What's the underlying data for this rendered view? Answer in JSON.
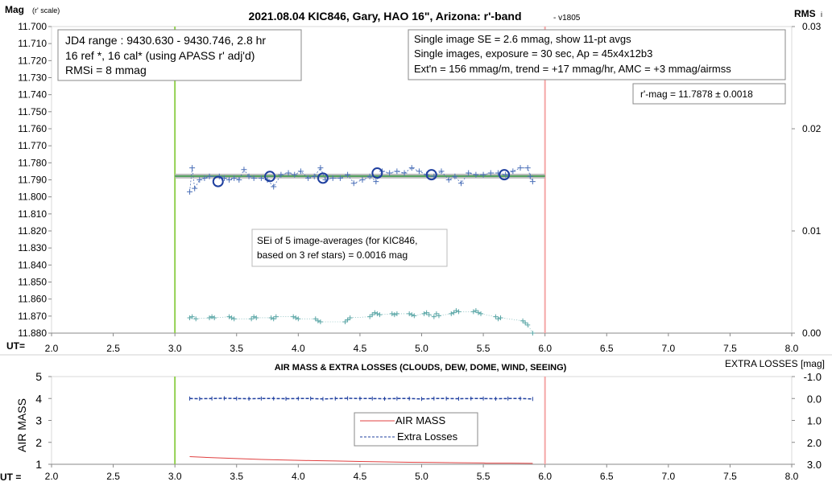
{
  "chart_data": [
    {
      "type": "scatter",
      "title": "2021.08.04 KIC846, Gary, HAO 16\", Arizona: r'-band",
      "title_suffix": " - v1805",
      "ylabel_main": "Mag",
      "ylabel_sub": "(r' scale)",
      "y2label_main": "RMS",
      "y2label_sub": "i",
      "xlabel": "UT=",
      "xlim": [
        2.0,
        8.0
      ],
      "ylim": [
        11.7,
        11.88
      ],
      "y_reversed": true,
      "y2lim": [
        0.0,
        0.03
      ],
      "x_ticks": [
        "2.0",
        "2.5",
        "3.0",
        "3.5",
        "4.0",
        "4.5",
        "5.0",
        "5.5",
        "6.0",
        "6.5",
        "7.0",
        "7.5",
        "8.0"
      ],
      "y_ticks": [
        "11.700",
        "11.710",
        "11.720",
        "11.730",
        "11.740",
        "11.750",
        "11.760",
        "11.770",
        "11.780",
        "11.790",
        "11.800",
        "11.810",
        "11.820",
        "11.830",
        "11.840",
        "11.850",
        "11.860",
        "11.870",
        "11.880"
      ],
      "y2_ticks": [
        "0.03",
        "0.02",
        "0.01",
        "0.00"
      ],
      "grid": false,
      "vlines": [
        {
          "x": 3.0,
          "color": "#92d050"
        },
        {
          "x": 6.0,
          "color": "#f4a6a6"
        }
      ],
      "fit_line": {
        "x": [
          3.0,
          6.0
        ],
        "y": 11.7878,
        "color": "#4ea05a",
        "band_color": "#b0b0b0"
      },
      "series": [
        {
          "kind": "single_images",
          "color": "#4a6fb8",
          "x": [
            3.12,
            3.14,
            3.16,
            3.2,
            3.24,
            3.28,
            3.36,
            3.4,
            3.44,
            3.48,
            3.52,
            3.56,
            3.6,
            3.64,
            3.7,
            3.75,
            3.8,
            3.86,
            3.92,
            3.97,
            4.02,
            4.08,
            4.13,
            4.18,
            4.22,
            4.28,
            4.34,
            4.4,
            4.45,
            4.52,
            4.58,
            4.63,
            4.68,
            4.74,
            4.8,
            4.86,
            4.92,
            4.98,
            5.04,
            5.1,
            5.16,
            5.22,
            5.27,
            5.32,
            5.38,
            5.44,
            5.5,
            5.56,
            5.62,
            5.68,
            5.74,
            5.8,
            5.86,
            5.88,
            5.9
          ],
          "y": [
            11.797,
            11.783,
            11.795,
            11.79,
            11.789,
            11.788,
            11.788,
            11.789,
            11.79,
            11.789,
            11.79,
            11.784,
            11.788,
            11.789,
            11.789,
            11.79,
            11.794,
            11.787,
            11.786,
            11.787,
            11.785,
            11.789,
            11.788,
            11.783,
            11.79,
            11.789,
            11.789,
            11.787,
            11.792,
            11.79,
            11.788,
            11.791,
            11.785,
            11.786,
            11.785,
            11.786,
            11.783,
            11.785,
            11.787,
            11.788,
            11.785,
            11.79,
            11.788,
            11.792,
            11.786,
            11.787,
            11.787,
            11.786,
            11.786,
            11.787,
            11.785,
            11.783,
            11.783,
            11.788,
            11.791
          ]
        },
        {
          "kind": "11pt_averages",
          "color": "#1f3f9f",
          "x": [
            3.35,
            3.77,
            4.2,
            4.64,
            5.08,
            5.67
          ],
          "y": [
            11.791,
            11.788,
            11.789,
            11.786,
            11.787,
            11.787
          ]
        },
        {
          "kind": "rms_i",
          "color": "#5aa6a6",
          "axis": "right",
          "x": [
            3.12,
            3.14,
            3.17,
            3.28,
            3.3,
            3.32,
            3.44,
            3.46,
            3.48,
            3.62,
            3.64,
            3.66,
            3.78,
            3.8,
            3.82,
            3.96,
            3.98,
            4.0,
            4.14,
            4.16,
            4.18,
            4.38,
            4.4,
            4.42,
            4.58,
            4.6,
            4.62,
            4.64,
            4.66,
            4.76,
            4.78,
            4.8,
            4.9,
            4.92,
            4.94,
            5.02,
            5.04,
            5.06,
            5.1,
            5.12,
            5.14,
            5.24,
            5.26,
            5.28,
            5.3,
            5.42,
            5.44,
            5.46,
            5.48,
            5.6,
            5.62,
            5.64,
            5.82,
            5.84,
            5.86,
            5.9
          ],
          "y": [
            0.0015,
            0.0016,
            0.0014,
            0.0015,
            0.0016,
            0.0015,
            0.0016,
            0.0015,
            0.0014,
            0.0014,
            0.0016,
            0.0015,
            0.0015,
            0.0014,
            0.0016,
            0.0016,
            0.0015,
            0.0014,
            0.0014,
            0.0012,
            0.0011,
            0.0011,
            0.0013,
            0.0015,
            0.0016,
            0.0018,
            0.002,
            0.0019,
            0.0018,
            0.0019,
            0.0018,
            0.0019,
            0.0019,
            0.0018,
            0.0017,
            0.0019,
            0.002,
            0.0018,
            0.0016,
            0.0019,
            0.0017,
            0.0019,
            0.002,
            0.0022,
            0.0021,
            0.0021,
            0.0022,
            0.002,
            0.0019,
            0.0016,
            0.0014,
            0.0015,
            0.0012,
            0.001,
            0.0008,
            0.0
          ]
        }
      ],
      "annotations": {
        "jd_box": [
          "JD4 range : 9430.630 - 9430.746,  2.8  hr",
          "16 ref *, 16 cal* (using APASS r' adj'd)",
          "RMSi = 8 mmag"
        ],
        "se_box": [
          "Single image SE = 2.6 mmag, show  11-pt avgs",
          "Single images, exposure = 30 sec, Ap = 45x4x12b3",
          "Ext'n = 156 mmag/m, trend =  +17 mmag/hr, AMC = +3 mmag/airmss"
        ],
        "rmag_box": "r'-mag = 11.7878 ± 0.0018",
        "sei_box": [
          "SEi of 5 image-averages (for KIC846,",
          "based on 3 ref stars) = 0.0016 mag"
        ]
      }
    },
    {
      "type": "line",
      "title": "AIR MASS & EXTRA LOSSES (CLOUDS, DEW, DOME, WIND, SEEING)",
      "ylabel": "AIR MASS",
      "y2label": "EXTRA LOSSES [mag]",
      "xlabel": "UT =",
      "xlim": [
        2.0,
        8.0
      ],
      "ylim": [
        1,
        5
      ],
      "y2lim": [
        -1.0,
        3.0
      ],
      "y2_reversed": true,
      "x_ticks": [
        "2.0",
        "2.5",
        "3.0",
        "3.5",
        "4.0",
        "4.5",
        "5.0",
        "5.5",
        "6.0",
        "6.5",
        "7.0",
        "7.5",
        "8.0"
      ],
      "y_ticks": [
        "5",
        "4",
        "3",
        "2",
        "1"
      ],
      "y2_ticks": [
        "-1.0",
        "0.0",
        "1.0",
        "2.0",
        "3.0"
      ],
      "vlines": [
        {
          "x": 3.0,
          "color": "#92d050"
        },
        {
          "x": 6.0,
          "color": "#f4a6a6"
        }
      ],
      "legend": [
        "AIR MASS",
        "Extra Losses"
      ],
      "series": [
        {
          "name": "AIR MASS",
          "color": "#e04040",
          "x": [
            3.12,
            3.3,
            3.5,
            3.7,
            3.9,
            4.1,
            4.2,
            4.3,
            4.5,
            4.7,
            4.9,
            5.1,
            5.3,
            5.5,
            5.52,
            5.7,
            5.9
          ],
          "y": [
            1.35,
            1.3,
            1.26,
            1.22,
            1.19,
            1.17,
            1.16,
            1.15,
            1.13,
            1.11,
            1.09,
            1.08,
            1.07,
            1.06,
            1.05,
            1.05,
            1.04
          ]
        },
        {
          "name": "Extra Losses",
          "color": "#1f3f9f",
          "axis": "right",
          "x": [
            3.12,
            3.2,
            3.3,
            3.4,
            3.5,
            3.6,
            3.7,
            3.8,
            3.9,
            4.0,
            4.1,
            4.2,
            4.3,
            4.4,
            4.5,
            4.6,
            4.7,
            4.8,
            4.9,
            5.0,
            5.1,
            5.2,
            5.3,
            5.4,
            5.5,
            5.6,
            5.7,
            5.8,
            5.9
          ],
          "y": [
            0.0,
            0.01,
            0.0,
            -0.01,
            0.0,
            0.01,
            0.0,
            0.0,
            0.01,
            0.0,
            0.0,
            0.02,
            0.0,
            -0.01,
            0.0,
            0.0,
            0.01,
            0.0,
            0.0,
            0.02,
            0.0,
            0.0,
            0.01,
            0.0,
            0.0,
            0.01,
            0.0,
            0.0,
            0.02
          ]
        }
      ]
    }
  ]
}
